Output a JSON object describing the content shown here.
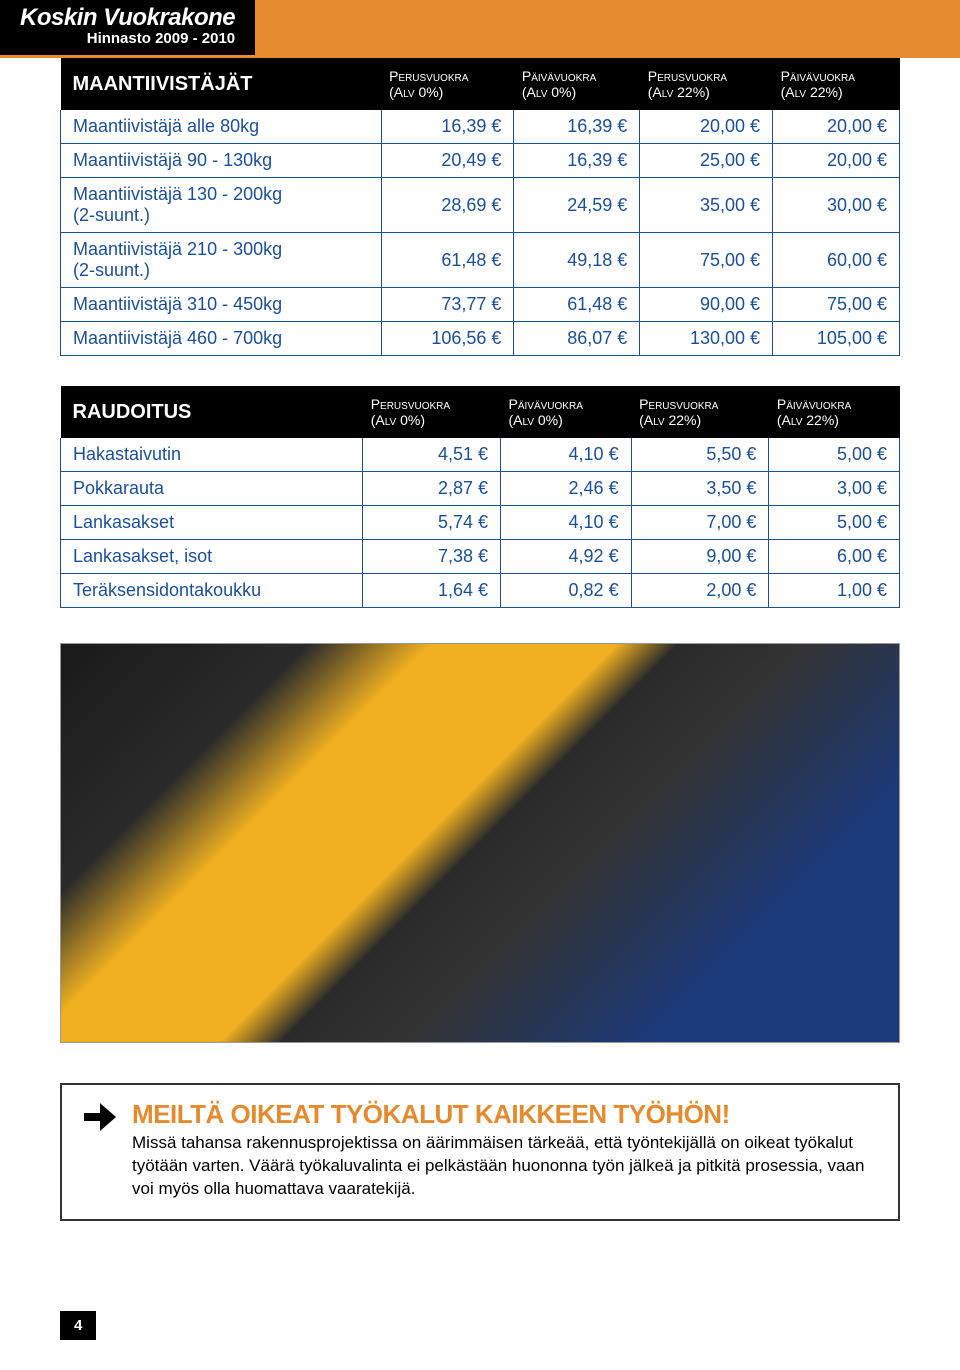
{
  "header": {
    "company": "Koskin Vuokrakone",
    "subtitle": "Hinnasto 2009 - 2010"
  },
  "table1": {
    "title": "MAANTIIVISTÄJÄT",
    "columns": [
      {
        "line1": "Perusvuokra",
        "line2": "(Alv 0%)"
      },
      {
        "line1": "Päivävuokra",
        "line2": "(Alv 0%)"
      },
      {
        "line1": "Perusvuokra",
        "line2": "(Alv 22%)"
      },
      {
        "line1": "Päivävuokra",
        "line2": "(Alv 22%)"
      }
    ],
    "rows": [
      {
        "label": "Maantiivistäjä alle 80kg",
        "v": [
          "16,39 €",
          "16,39 €",
          "20,00 €",
          "20,00 €"
        ]
      },
      {
        "label": "Maantiivistäjä 90 - 130kg",
        "v": [
          "20,49 €",
          "16,39 €",
          "25,00 €",
          "20,00 €"
        ]
      },
      {
        "label": "Maantiivistäjä 130 - 200kg\n(2-suunt.)",
        "v": [
          "28,69 €",
          "24,59 €",
          "35,00 €",
          "30,00 €"
        ]
      },
      {
        "label": "Maantiivistäjä 210 - 300kg\n(2-suunt.)",
        "v": [
          "61,48 €",
          "49,18 €",
          "75,00 €",
          "60,00 €"
        ]
      },
      {
        "label": "Maantiivistäjä 310 - 450kg",
        "v": [
          "73,77 €",
          "61,48 €",
          "90,00 €",
          "75,00 €"
        ]
      },
      {
        "label": "Maantiivistäjä 460 - 700kg",
        "v": [
          "106,56 €",
          "86,07 €",
          "130,00 €",
          "105,00 €"
        ]
      }
    ]
  },
  "table2": {
    "title": "RAUDOITUS",
    "columns": [
      {
        "line1": "Perusvuokra",
        "line2": "(Alv 0%)"
      },
      {
        "line1": "Päivävuokra",
        "line2": "(Alv 0%)"
      },
      {
        "line1": "Perusvuokra",
        "line2": "(Alv 22%)"
      },
      {
        "line1": "Päivävuokra",
        "line2": "(Alv 22%)"
      }
    ],
    "rows": [
      {
        "label": "Hakastaivutin",
        "v": [
          "4,51 €",
          "4,10 €",
          "5,50 €",
          "5,00 €"
        ]
      },
      {
        "label": "Pokkarauta",
        "v": [
          "2,87 €",
          "2,46 €",
          "3,50 €",
          "3,00 €"
        ]
      },
      {
        "label": "Lankasakset",
        "v": [
          "5,74 €",
          "4,10 €",
          "7,00 €",
          "5,00 €"
        ]
      },
      {
        "label": "Lankasakset, isot",
        "v": [
          "7,38 €",
          "4,92 €",
          "9,00 €",
          "6,00 €"
        ]
      },
      {
        "label": "Teräksensidontakoukku",
        "v": [
          "1,64 €",
          "0,82 €",
          "2,00 €",
          "1,00 €"
        ]
      }
    ]
  },
  "callout": {
    "headline": "MEILTÄ OIKEAT TYÖKALUT KAIKKEEN TYÖHÖN!",
    "body": "Missä tahansa rakennusprojektissa on äärimmäisen tärkeää, että työntekijällä on oikeat työkalut työtään varten. Väärä työkaluvalinta ei pelkästään huononna työn jälkeä ja pitkitä prosessia, vaan voi myös olla huomattava vaaratekijä."
  },
  "page_number": "4",
  "colors": {
    "accent_orange": "#e68a2e",
    "text_blue": "#1a4f9c",
    "black": "#000000",
    "white": "#ffffff"
  }
}
